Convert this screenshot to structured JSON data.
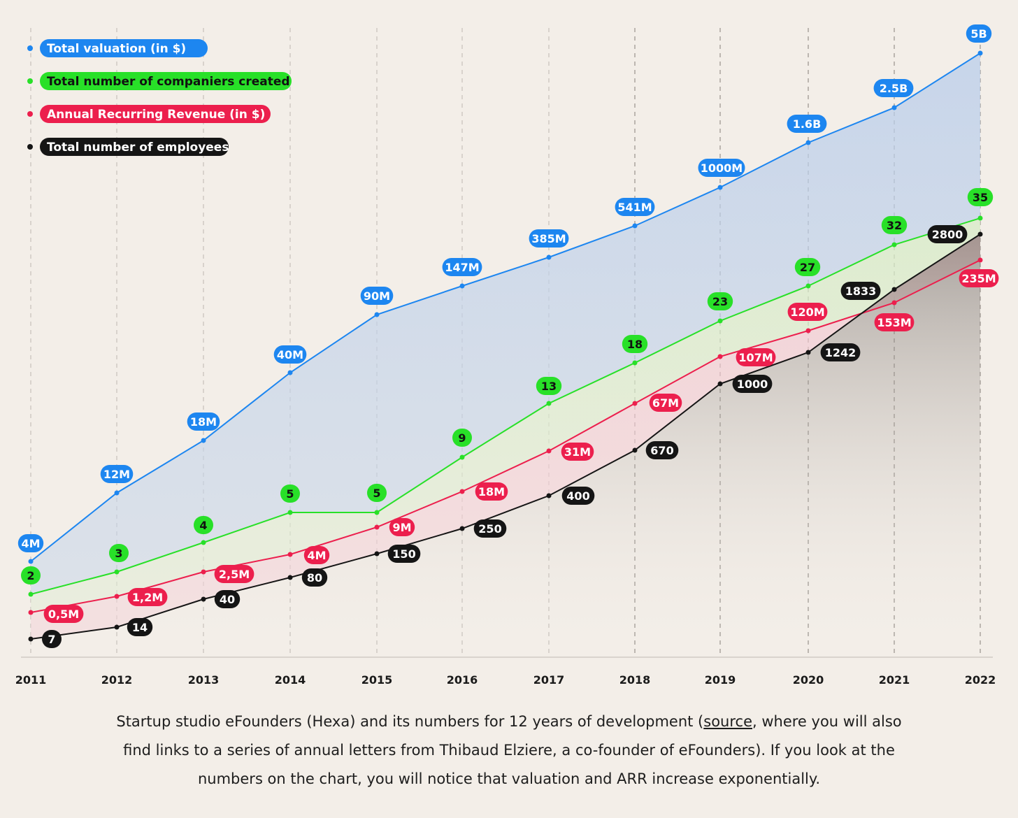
{
  "chart_data": {
    "type": "line",
    "categories": [
      "2011",
      "2012",
      "2013",
      "2014",
      "2015",
      "2016",
      "2017",
      "2018",
      "2019",
      "2020",
      "2021",
      "2022"
    ],
    "series": [
      {
        "name": "Total valuation (in $)",
        "color": "#1d86f0",
        "labels": [
          "4M",
          "12M",
          "18M",
          "40M",
          "90M",
          "147M",
          "385M",
          "541M",
          "1000M",
          "1.6B",
          "2.5B",
          "5B"
        ]
      },
      {
        "name": "Total number of companiers created",
        "color": "#28e028",
        "label_text_color": "#111111",
        "values": [
          2,
          3,
          4,
          5,
          5,
          9,
          13,
          18,
          23,
          27,
          32,
          35
        ]
      },
      {
        "name": "Annual Recurring Revenue (in $)",
        "color": "#ec1f4d",
        "labels": [
          "0,5M",
          "1,2M",
          "2,5M",
          "4M",
          "9M",
          "18M",
          "31M",
          "67M",
          "107M",
          "120M",
          "153M",
          "235M"
        ]
      },
      {
        "name": "Total number of employees",
        "color": "#151515",
        "values": [
          7,
          14,
          40,
          80,
          150,
          250,
          400,
          670,
          1000,
          1242,
          1833,
          2800
        ]
      }
    ],
    "scale": "log-like (no value axis shown)",
    "grid": "dashed vertical lines at each year",
    "legend": "top-left"
  },
  "caption": {
    "before_link": "Startup studio eFounders (Hexa) and its numbers for 12 years of development (",
    "link": "source",
    "after_link": ", where you will also find links to a series of annual letters from Thibaud Elziere, a co-founder of eFounders). If you look at the numbers on the chart, you will notice that valuation and ARR increase exponentially."
  }
}
